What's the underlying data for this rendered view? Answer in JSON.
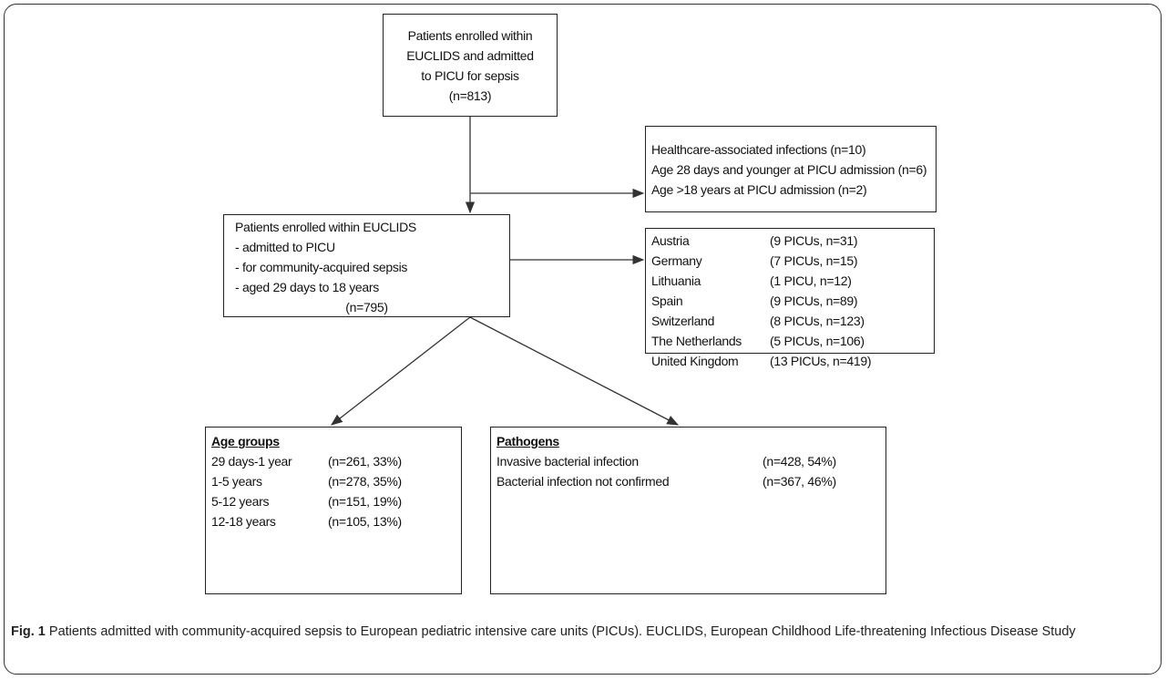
{
  "nodes": [
    {
      "lines": [
        "Patients enrolled within",
        "EUCLIDS and admitted",
        "to PICU for sepsis",
        "(n=813)"
      ]
    },
    {
      "lines": [
        "Healthcare-associated infections (n=10)",
        "Age 28 days and younger at PICU admission (n=6)",
        "Age >18 years at PICU admission (n=2)"
      ]
    },
    {
      "lines": [
        "Patients enrolled within EUCLIDS",
        "- admitted to PICU",
        "- for community-acquired sepsis",
        "- aged 29 days to 18 years",
        "(n=795)"
      ]
    },
    {
      "rows": [
        [
          "Austria",
          "(9 PICUs, n=31)"
        ],
        [
          "Germany",
          "(7 PICUs, n=15)"
        ],
        [
          "Lithuania",
          "(1 PICU, n=12)"
        ],
        [
          "Spain",
          "(9 PICUs, n=89)"
        ],
        [
          "Switzerland",
          "(8 PICUs, n=123)"
        ],
        [
          "The Netherlands",
          "(5 PICUs, n=106)"
        ],
        [
          "United Kingdom",
          "(13 PICUs, n=419)"
        ]
      ]
    },
    {
      "title": "Age groups",
      "rows": [
        [
          "29 days-1 year",
          "(n=261, 33%)"
        ],
        [
          "1-5 years",
          "(n=278, 35%)"
        ],
        [
          "5-12 years",
          "(n=151, 19%)"
        ],
        [
          "12-18 years",
          "(n=105, 13%)"
        ]
      ]
    },
    {
      "title": "Pathogens",
      "rows": [
        [
          "Invasive bacterial infection",
          "(n=428, 54%)"
        ],
        [
          "Bacterial infection not confirmed",
          "(n=367, 46%)"
        ]
      ]
    }
  ],
  "caption": {
    "label": "Fig. 1",
    "text": "Patients admitted with community-acquired sepsis to European pediatric intensive care units (PICUs). EUCLIDS, European Childhood Life-threatening Infectious Disease Study"
  }
}
